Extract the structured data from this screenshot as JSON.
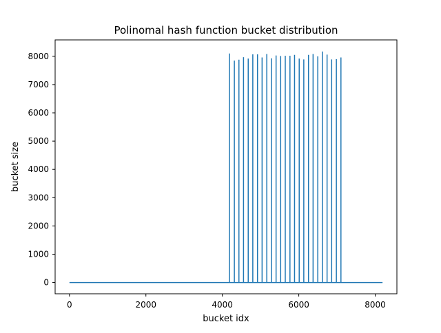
{
  "chart_data": {
    "type": "line",
    "title": "Polinomal hash function bucket distribution",
    "xlabel": "bucket idx",
    "ylabel": "bucket size",
    "xlim": [
      -375,
      8567
    ],
    "ylim": [
      -400,
      8580
    ],
    "x_ticks": [
      0,
      2000,
      4000,
      6000,
      8000
    ],
    "y_ticks": [
      0,
      1000,
      2000,
      3000,
      4000,
      5000,
      6000,
      7000,
      8000
    ],
    "grid": false,
    "series": [
      {
        "name": "",
        "color": "#1f77b4",
        "baseline": 0,
        "x_range": [
          0,
          8191
        ],
        "spikes": [
          {
            "x": 4186,
            "y": 8100
          },
          {
            "x": 4314,
            "y": 7850
          },
          {
            "x": 4434,
            "y": 7880
          },
          {
            "x": 4554,
            "y": 7970
          },
          {
            "x": 4677,
            "y": 7920
          },
          {
            "x": 4797,
            "y": 8070
          },
          {
            "x": 4920,
            "y": 8070
          },
          {
            "x": 5040,
            "y": 7960
          },
          {
            "x": 5163,
            "y": 8080
          },
          {
            "x": 5283,
            "y": 7930
          },
          {
            "x": 5406,
            "y": 8030
          },
          {
            "x": 5526,
            "y": 8010
          },
          {
            "x": 5646,
            "y": 8020
          },
          {
            "x": 5769,
            "y": 8020
          },
          {
            "x": 5889,
            "y": 8050
          },
          {
            "x": 6011,
            "y": 7920
          },
          {
            "x": 6131,
            "y": 7890
          },
          {
            "x": 6254,
            "y": 8050
          },
          {
            "x": 6374,
            "y": 8080
          },
          {
            "x": 6497,
            "y": 8000
          },
          {
            "x": 6617,
            "y": 8170
          },
          {
            "x": 6740,
            "y": 8060
          },
          {
            "x": 6860,
            "y": 7890
          },
          {
            "x": 6983,
            "y": 7900
          },
          {
            "x": 7103,
            "y": 7960
          }
        ]
      }
    ]
  }
}
